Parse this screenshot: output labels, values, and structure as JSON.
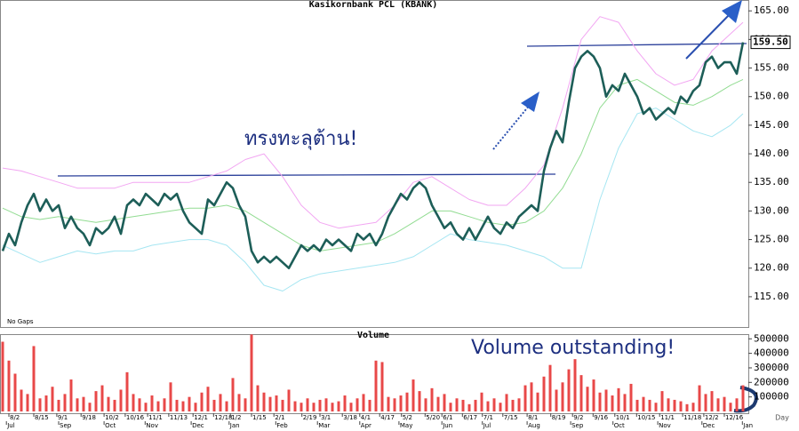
{
  "chart_data": [
    {
      "type": "line",
      "title": "Kasikornbank PCL (KBANK)",
      "note": "No Gaps",
      "last_value_label": "159.50",
      "annotations": [
        "ทรงทะลุต้าน!"
      ],
      "xlim": [
        0,
        119
      ],
      "ylim": [
        109.7,
        166.9
      ],
      "yticks": [
        {
          "value": 115,
          "label": "115.00"
        },
        {
          "value": 120,
          "label": "120.00"
        },
        {
          "value": 125,
          "label": "125.00"
        },
        {
          "value": 130,
          "label": "130.00"
        },
        {
          "value": 135,
          "label": "135.00"
        },
        {
          "value": 140,
          "label": "140.00"
        },
        {
          "value": 145,
          "label": "145.00"
        },
        {
          "value": 150,
          "label": "150.00"
        },
        {
          "value": 155,
          "label": "155.00"
        },
        {
          "value": 160,
          "label": "160.00"
        },
        {
          "value": 165,
          "label": "165.00"
        }
      ],
      "series": [
        {
          "color": "#1d5e58",
          "width": 2.6,
          "values": [
            123,
            126,
            124,
            128,
            131,
            133,
            130,
            132,
            130,
            131,
            127,
            129,
            127,
            126,
            124,
            127,
            126,
            127,
            129,
            126,
            131,
            132,
            131,
            133,
            132,
            131,
            133,
            132,
            133,
            130,
            128,
            127,
            126,
            132,
            131,
            133,
            135,
            134,
            131,
            129,
            123,
            121,
            122,
            121,
            122,
            121,
            120,
            122,
            124,
            123,
            124,
            123,
            125,
            124,
            125,
            124,
            123,
            126,
            125,
            126,
            124,
            126,
            129,
            131,
            133,
            132,
            134,
            135,
            134,
            131,
            129,
            127,
            128,
            126,
            125,
            127,
            125,
            127,
            129,
            127,
            126,
            128,
            127,
            129,
            130,
            131,
            130,
            137,
            141,
            144,
            142,
            149,
            155,
            157,
            158,
            157,
            155,
            150,
            152,
            151,
            154,
            152,
            150,
            147,
            148,
            146,
            147,
            148,
            147,
            150,
            149,
            151,
            152,
            156,
            157,
            155,
            156,
            156,
            154,
            159.5
          ]
        },
        {
          "color": "#f2a6f2",
          "width": 1,
          "x": [
            0,
            3,
            6,
            9,
            12,
            15,
            18,
            21,
            24,
            27,
            30,
            33,
            36,
            39,
            42,
            45,
            48,
            51,
            54,
            57,
            60,
            63,
            66,
            69,
            72,
            75,
            78,
            81,
            84,
            87,
            90,
            93,
            96,
            99,
            102,
            105,
            108,
            111,
            114,
            117,
            119
          ],
          "values": [
            137.5,
            137,
            136,
            135,
            134,
            134,
            134,
            135,
            135,
            135,
            135,
            136,
            137,
            139,
            140,
            136,
            131,
            128,
            127,
            127.5,
            128,
            131,
            135,
            136,
            134,
            132,
            131,
            131,
            134,
            138,
            148,
            160,
            164,
            163,
            158,
            154,
            152,
            153,
            158,
            161,
            163
          ]
        },
        {
          "color": "#92dc92",
          "width": 1,
          "x": [
            0,
            3,
            6,
            9,
            12,
            15,
            18,
            21,
            24,
            27,
            30,
            33,
            36,
            39,
            42,
            45,
            48,
            51,
            54,
            57,
            60,
            63,
            66,
            69,
            72,
            75,
            78,
            81,
            84,
            87,
            90,
            93,
            96,
            99,
            102,
            105,
            108,
            111,
            114,
            117,
            119
          ],
          "values": [
            130.5,
            129,
            128.5,
            129,
            128.5,
            128,
            128.5,
            129,
            129.5,
            130,
            130.5,
            130.5,
            131,
            130,
            128,
            126,
            124,
            123,
            123.5,
            124,
            124.5,
            126,
            128,
            130,
            130,
            129,
            128,
            127.5,
            128,
            130,
            134,
            140,
            148,
            152,
            153,
            151,
            149,
            148.5,
            150,
            152,
            153
          ]
        },
        {
          "color": "#a6e6f2",
          "width": 1,
          "x": [
            0,
            3,
            6,
            9,
            12,
            15,
            18,
            21,
            24,
            27,
            30,
            33,
            36,
            39,
            42,
            45,
            48,
            51,
            54,
            57,
            60,
            63,
            66,
            69,
            72,
            75,
            78,
            81,
            84,
            87,
            90,
            93,
            96,
            99,
            102,
            105,
            108,
            111,
            114,
            117,
            119
          ],
          "values": [
            124,
            122.5,
            121,
            122,
            123,
            122.5,
            123,
            123,
            124,
            124.5,
            125,
            125,
            124,
            121,
            117,
            116,
            118,
            119,
            119.5,
            120,
            120.5,
            121,
            122,
            124,
            126,
            125,
            124.5,
            124,
            123,
            122,
            120,
            120,
            132,
            141,
            147,
            148,
            146,
            144,
            143,
            145,
            147
          ]
        }
      ]
    },
    {
      "type": "bar",
      "title": "Volume",
      "annotations": [
        "Volume outstanding!"
      ],
      "x_label": "Day",
      "color": "#e84848",
      "ylim": [
        0,
        520000
      ],
      "yticks": [
        100000,
        200000,
        300000,
        400000,
        500000
      ],
      "values": [
        480000,
        350000,
        260000,
        150000,
        120000,
        450000,
        90000,
        110000,
        170000,
        80000,
        120000,
        220000,
        90000,
        100000,
        60000,
        140000,
        180000,
        100000,
        80000,
        150000,
        270000,
        120000,
        90000,
        60000,
        110000,
        70000,
        90000,
        200000,
        80000,
        70000,
        100000,
        60000,
        130000,
        170000,
        80000,
        120000,
        70000,
        230000,
        120000,
        90000,
        530000,
        180000,
        130000,
        100000,
        110000,
        80000,
        150000,
        70000,
        60000,
        90000,
        60000,
        80000,
        90000,
        60000,
        70000,
        110000,
        60000,
        90000,
        120000,
        80000,
        350000,
        340000,
        100000,
        90000,
        110000,
        130000,
        220000,
        140000,
        90000,
        160000,
        100000,
        120000,
        60000,
        90000,
        80000,
        50000,
        80000,
        130000,
        70000,
        90000,
        60000,
        120000,
        80000,
        90000,
        180000,
        200000,
        130000,
        240000,
        320000,
        150000,
        200000,
        290000,
        360000,
        250000,
        170000,
        220000,
        130000,
        150000,
        110000,
        160000,
        120000,
        190000,
        80000,
        100000,
        80000,
        60000,
        140000,
        90000,
        80000,
        70000,
        50000,
        60000,
        180000,
        120000,
        140000,
        90000,
        100000,
        60000,
        90000,
        180000
      ],
      "xticks": [
        {
          "value": 1,
          "label": "8/2"
        },
        {
          "value": 5,
          "label": "8/15"
        },
        {
          "value": 8.7,
          "label": "9/1"
        },
        {
          "value": 12.6,
          "label": "9/18"
        },
        {
          "value": 16.3,
          "label": "10/2"
        },
        {
          "value": 19.7,
          "label": "10/16"
        },
        {
          "value": 23.3,
          "label": "11/1"
        },
        {
          "value": 26.7,
          "label": "11/13"
        },
        {
          "value": 30.6,
          "label": "12/1"
        },
        {
          "value": 33.9,
          "label": "12/18"
        },
        {
          "value": 36.6,
          "label": "1/2"
        },
        {
          "value": 40,
          "label": "1/15"
        },
        {
          "value": 43.6,
          "label": "2/1"
        },
        {
          "value": 48.1,
          "label": "2/19"
        },
        {
          "value": 51,
          "label": "3/1"
        },
        {
          "value": 54.6,
          "label": "3/18"
        },
        {
          "value": 57.4,
          "label": "4/1"
        },
        {
          "value": 60.6,
          "label": "4/17"
        },
        {
          "value": 64.1,
          "label": "5/2"
        },
        {
          "value": 67.9,
          "label": "5/20"
        },
        {
          "value": 70.6,
          "label": "6/1"
        },
        {
          "value": 73.9,
          "label": "6/17"
        },
        {
          "value": 77.1,
          "label": "7/1"
        },
        {
          "value": 80.4,
          "label": "7/15"
        },
        {
          "value": 84.3,
          "label": "8/1"
        },
        {
          "value": 88.1,
          "label": "8/19"
        },
        {
          "value": 91.6,
          "label": "9/2"
        },
        {
          "value": 94.9,
          "label": "9/16"
        },
        {
          "value": 98.4,
          "label": "10/1"
        },
        {
          "value": 101.9,
          "label": "10/15"
        },
        {
          "value": 105.6,
          "label": "11/1"
        },
        {
          "value": 109.3,
          "label": "11/18"
        },
        {
          "value": 112.7,
          "label": "12/2"
        },
        {
          "value": 116,
          "label": "12/16"
        }
      ],
      "month_ticks": [
        {
          "value": 0.6,
          "label": "Jul"
        },
        {
          "value": 9,
          "label": "Sep"
        },
        {
          "value": 16.3,
          "label": "Oct"
        },
        {
          "value": 22.9,
          "label": "Nov"
        },
        {
          "value": 30.3,
          "label": "Dec"
        },
        {
          "value": 36.4,
          "label": "Jan"
        },
        {
          "value": 43.9,
          "label": "Feb"
        },
        {
          "value": 50.6,
          "label": "Mar"
        },
        {
          "value": 57.4,
          "label": "Apr"
        },
        {
          "value": 63.7,
          "label": "May"
        },
        {
          "value": 70.6,
          "label": "Jun"
        },
        {
          "value": 77.1,
          "label": "Jul"
        },
        {
          "value": 84.3,
          "label": "Aug"
        },
        {
          "value": 91.3,
          "label": "Sep"
        },
        {
          "value": 98.1,
          "label": "Oct"
        },
        {
          "value": 105.3,
          "label": "Nov"
        },
        {
          "value": 112.4,
          "label": "Dec"
        },
        {
          "value": 118.9,
          "label": "Jan"
        }
      ]
    }
  ]
}
